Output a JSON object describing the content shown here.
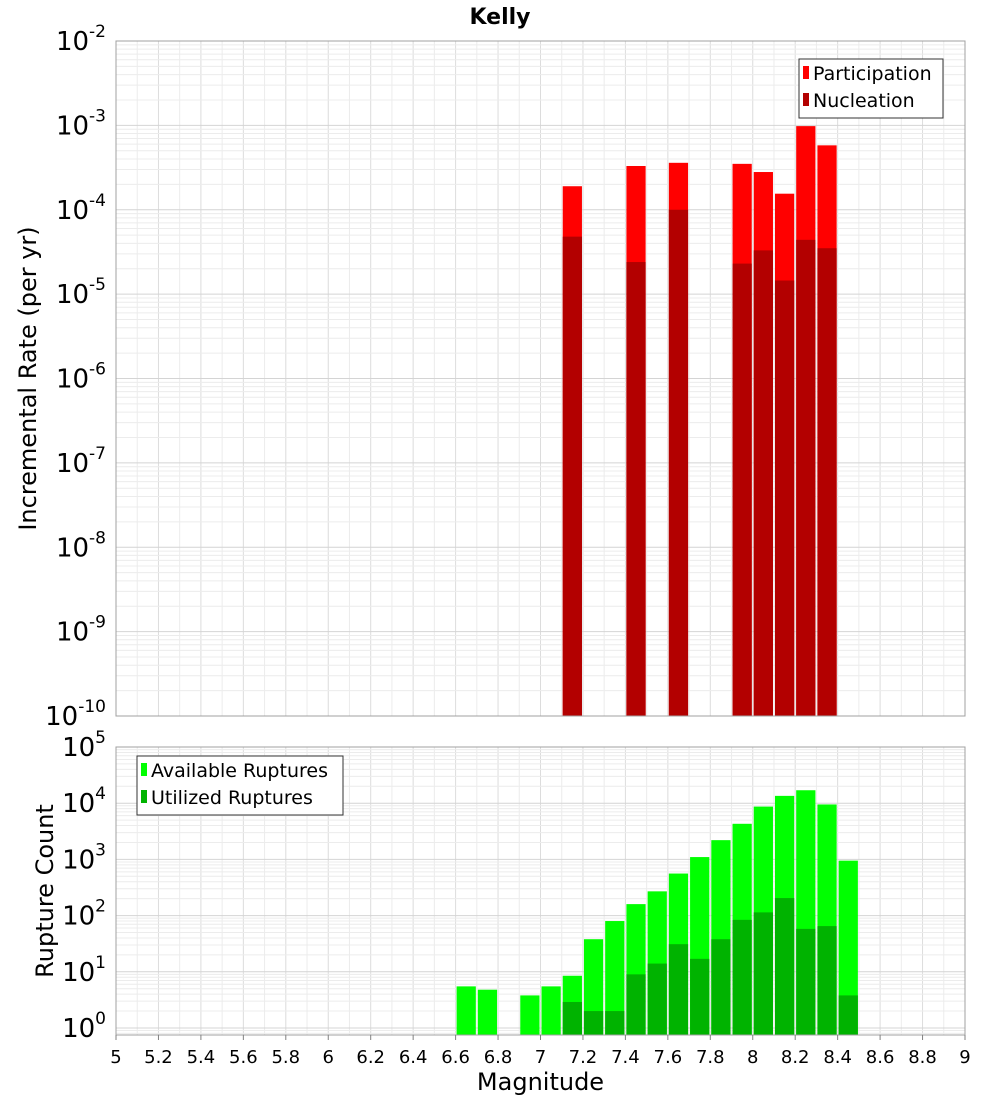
{
  "title": "Kelly",
  "chart_data": [
    {
      "type": "bar",
      "ylabel": "Incremental Rate (per yr)",
      "xlabel": "",
      "yscale": "log",
      "ylim": [
        1e-10,
        0.01
      ],
      "xlim": [
        5,
        9
      ],
      "grid": true,
      "legend_position": "top-right",
      "ytick_exponents": [
        "-10",
        "-9",
        "-8",
        "-7",
        "-6",
        "-5",
        "-4",
        "-3",
        "-2"
      ],
      "x": [
        7.15,
        7.45,
        7.65,
        7.95,
        8.05,
        8.15,
        8.25,
        8.35
      ],
      "series": [
        {
          "name": "Participation",
          "color": "#ff0000",
          "values": [
            0.00019,
            0.00033,
            0.00036,
            0.00035,
            0.00028,
            0.000155,
            0.00098,
            0.00058
          ]
        },
        {
          "name": "Nucleation",
          "color": "#b30000",
          "values": [
            4.8e-05,
            2.4e-05,
            0.0001,
            2.3e-05,
            3.3e-05,
            1.45e-05,
            4.4e-05,
            3.5e-05
          ]
        }
      ]
    },
    {
      "type": "bar",
      "ylabel": "Rupture Count",
      "xlabel": "Magnitude",
      "yscale": "log",
      "ylim": [
        0.75,
        100000.0
      ],
      "xlim": [
        5,
        9
      ],
      "grid": true,
      "legend_position": "top-left",
      "ytick_exponents": [
        "0",
        "1",
        "2",
        "3",
        "4",
        "5"
      ],
      "xticks": [
        "5",
        "5.2",
        "5.4",
        "5.6",
        "5.8",
        "6",
        "6.2",
        "6.4",
        "6.6",
        "6.8",
        "7",
        "7.2",
        "7.4",
        "7.6",
        "7.8",
        "8",
        "8.2",
        "8.4",
        "8.6",
        "8.8",
        "9"
      ],
      "x": [
        6.65,
        6.75,
        6.95,
        7.05,
        7.15,
        7.25,
        7.35,
        7.45,
        7.55,
        7.65,
        7.75,
        7.85,
        7.95,
        8.05,
        8.15,
        8.25,
        8.35,
        8.45
      ],
      "series": [
        {
          "name": "Available Ruptures",
          "color": "#00ff00",
          "values": [
            5.5,
            4.8,
            3.8,
            5.5,
            8.5,
            38,
            80,
            160,
            270,
            560,
            1100,
            2200,
            4300,
            8700,
            13500,
            17000,
            9500,
            950
          ]
        },
        {
          "name": "Utilized Ruptures",
          "color": "#00b300",
          "values": [
            0,
            0,
            0,
            0,
            2.9,
            2,
            2,
            9,
            14,
            31,
            17,
            38,
            84,
            114,
            205,
            58,
            65,
            3.8
          ]
        }
      ]
    }
  ]
}
